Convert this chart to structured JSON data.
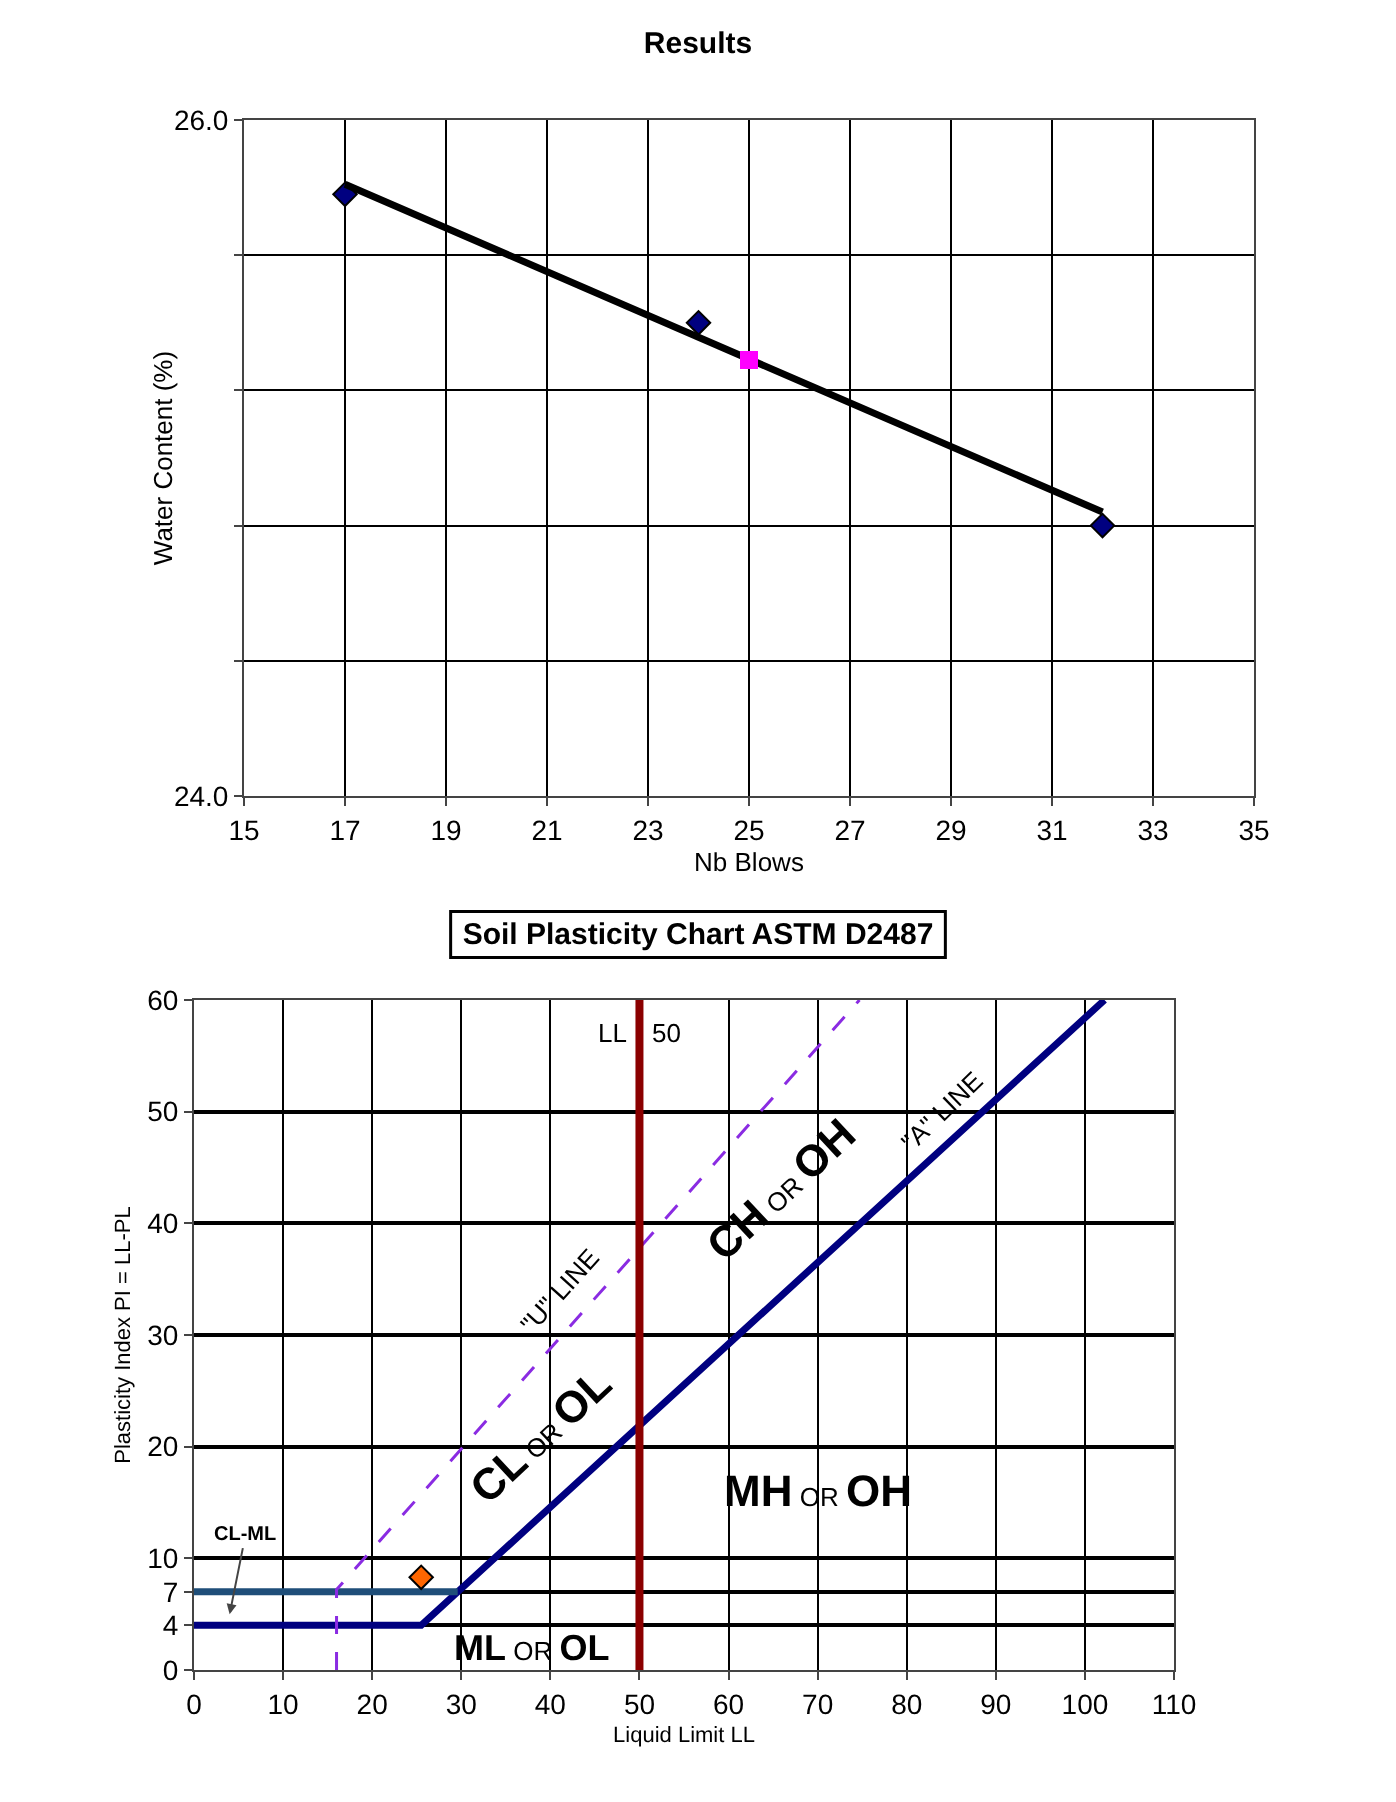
{
  "chart_data": [
    {
      "type": "scatter",
      "title": "Results",
      "xlabel": "Nb Blows",
      "ylabel": "Water Content (%)",
      "xlim": [
        15,
        35
      ],
      "xticks": [
        15,
        17,
        19,
        21,
        23,
        25,
        27,
        29,
        31,
        33,
        35
      ],
      "ylim": [
        24,
        26
      ],
      "yticks": [
        {
          "value": 24,
          "label": "24.0"
        },
        {
          "value": 24.4,
          "label": null
        },
        {
          "value": 24.8,
          "label": null
        },
        {
          "value": 25.2,
          "label": null
        },
        {
          "value": 25.6,
          "label": null
        },
        {
          "value": 26,
          "label": "26.0"
        }
      ],
      "grid": true,
      "series": [
        {
          "color": "#000080",
          "marker": "diamond",
          "x": [
            17,
            24,
            32
          ],
          "values": [
            25.78,
            25.4,
            24.8
          ]
        },
        {
          "type": "line",
          "color": "#000000",
          "marker": "none",
          "line_style": "solid",
          "x": [
            17,
            32
          ],
          "values": [
            25.81,
            24.84
          ]
        },
        {
          "color": "#ff00ff",
          "marker": "square",
          "x": [
            25
          ],
          "values": [
            25.29
          ]
        }
      ]
    },
    {
      "type": "line",
      "title": "Soil Plasticity Chart ASTM D2487",
      "xlabel": "Liquid Limit LL",
      "ylabel": "Plasticity Index PI = LL-PL",
      "xlim": [
        0,
        110
      ],
      "xticks": [
        0,
        10,
        20,
        30,
        40,
        50,
        60,
        70,
        80,
        90,
        100,
        110
      ],
      "ylim": [
        0,
        60
      ],
      "yticks": [
        0,
        4,
        7,
        10,
        20,
        30,
        40,
        50,
        60
      ],
      "grid": true,
      "series": [
        {
          "color": "#000080",
          "line_style": "solid",
          "marker": "none",
          "x": [
            0,
            25.5,
            102.2
          ],
          "values": [
            4,
            4,
            60
          ]
        },
        {
          "color": "#1f4e79",
          "line_style": "solid",
          "marker": "none",
          "x": [
            0,
            29.6
          ],
          "values": [
            7,
            7
          ]
        },
        {
          "color": "#8a2be2",
          "line_style": "dashed",
          "marker": "none",
          "x": [
            16,
            16,
            74.7
          ],
          "values": [
            0,
            7.2,
            60
          ]
        },
        {
          "type": "scatter",
          "color": "#ff6600",
          "marker": "diamond",
          "x": [
            25.5
          ],
          "values": [
            8.3
          ]
        }
      ],
      "ref_lines": [
        {
          "axis": "x",
          "value": 50,
          "label": null,
          "color": "#8b0000"
        }
      ],
      "annotations": [
        {
          "text": "CL-ML",
          "x": 4,
          "y": 5
        },
        "CL OR OL",
        "CH OR OH",
        "MH OR OH",
        "ML OR OL",
        "\"U\" LINE",
        "\"A\" LINE",
        "LL",
        "50"
      ]
    }
  ]
}
